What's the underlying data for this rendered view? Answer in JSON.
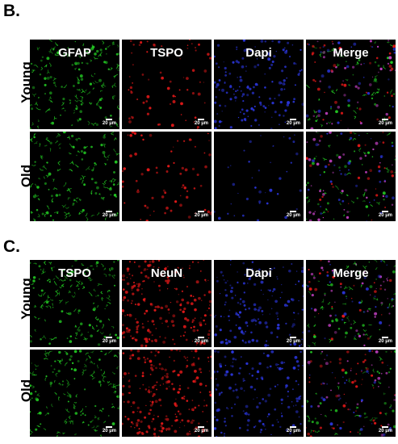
{
  "panels": [
    {
      "letter": "B.",
      "rows": [
        "Young",
        "Old"
      ],
      "columns": [
        {
          "label": "GFAP",
          "color": "#22c422"
        },
        {
          "label": "TSPO",
          "color": "#e01818"
        },
        {
          "label": "Dapi",
          "color": "#2a35d8"
        },
        {
          "label": "Merge",
          "color": "merge"
        }
      ]
    },
    {
      "letter": "C.",
      "rows": [
        "Young",
        "Old"
      ],
      "columns": [
        {
          "label": "TSPO",
          "color": "#22c422"
        },
        {
          "label": "NeuN",
          "color": "#e01818"
        },
        {
          "label": "Dapi",
          "color": "#2a35d8"
        },
        {
          "label": "Merge",
          "color": "merge"
        }
      ]
    }
  ],
  "scale_bar_label": "20 µm"
}
